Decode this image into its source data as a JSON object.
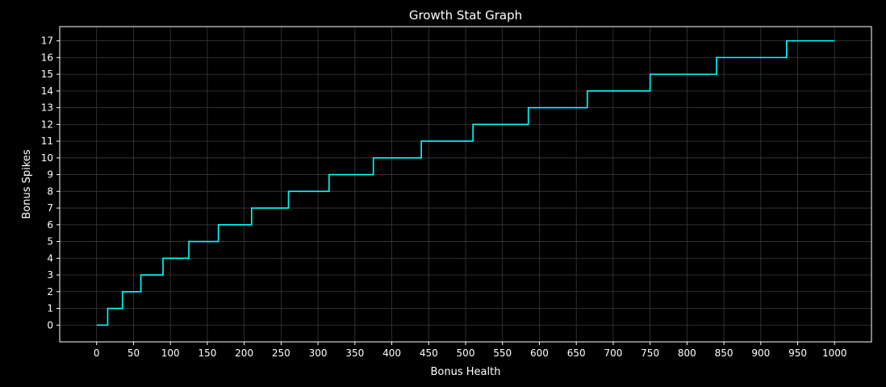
{
  "chart_data": {
    "type": "line",
    "step": "post",
    "title": "Growth Stat Graph",
    "xlabel": "Bonus Health",
    "ylabel": "Bonus Spikes",
    "xlim": [
      -50,
      1050
    ],
    "ylim": [
      -1,
      17.85
    ],
    "xticks": [
      0,
      50,
      100,
      150,
      200,
      250,
      300,
      350,
      400,
      450,
      500,
      550,
      600,
      650,
      700,
      750,
      800,
      850,
      900,
      950,
      1000
    ],
    "yticks": [
      0,
      1,
      2,
      3,
      4,
      5,
      6,
      7,
      8,
      9,
      10,
      11,
      12,
      13,
      14,
      15,
      16,
      17
    ],
    "grid": true,
    "series": [
      {
        "color": "#00ffff",
        "x": [
          0,
          15,
          35,
          60,
          90,
          125,
          165,
          210,
          260,
          315,
          375,
          440,
          510,
          585,
          665,
          750,
          840,
          935,
          1000
        ],
        "y": [
          0,
          1,
          2,
          3,
          4,
          5,
          6,
          7,
          8,
          9,
          10,
          11,
          12,
          13,
          14,
          15,
          16,
          17,
          17
        ]
      }
    ]
  },
  "colors": {
    "background": "#000000",
    "axes": "#ffffff",
    "grid": "#3a3a3a",
    "line": "#00ffff"
  }
}
